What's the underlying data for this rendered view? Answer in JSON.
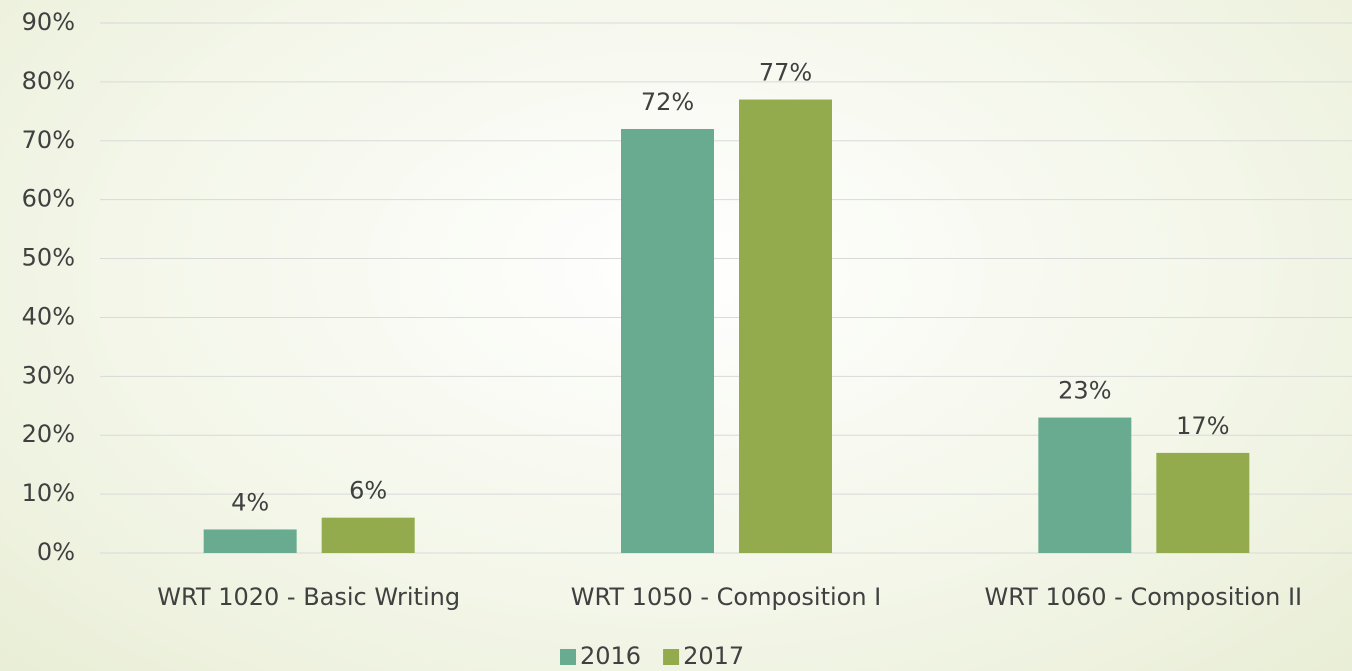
{
  "chart_data": {
    "type": "bar",
    "categories": [
      "WRT 1020 - Basic Writing",
      "WRT 1050 - Composition I",
      "WRT 1060 - Composition II"
    ],
    "series": [
      {
        "name": "2016",
        "color": "#69ab91",
        "values": [
          4,
          72,
          23
        ],
        "value_labels": [
          "4%",
          "72%",
          "23%"
        ]
      },
      {
        "name": "2017",
        "color": "#93ab4d",
        "values": [
          6,
          77,
          17
        ],
        "value_labels": [
          "6%",
          "77%",
          "17%"
        ]
      }
    ],
    "ylim": [
      0,
      90
    ],
    "yticks": [
      {
        "value": 0,
        "label": "0%"
      },
      {
        "value": 10,
        "label": "10%"
      },
      {
        "value": 20,
        "label": "20%"
      },
      {
        "value": 30,
        "label": "30%"
      },
      {
        "value": 40,
        "label": "40%"
      },
      {
        "value": 50,
        "label": "50%"
      },
      {
        "value": 60,
        "label": "60%"
      },
      {
        "value": 70,
        "label": "70%"
      },
      {
        "value": 80,
        "label": "80%"
      },
      {
        "value": 90,
        "label": "90%"
      }
    ],
    "grid": true,
    "legend": "bottom"
  }
}
